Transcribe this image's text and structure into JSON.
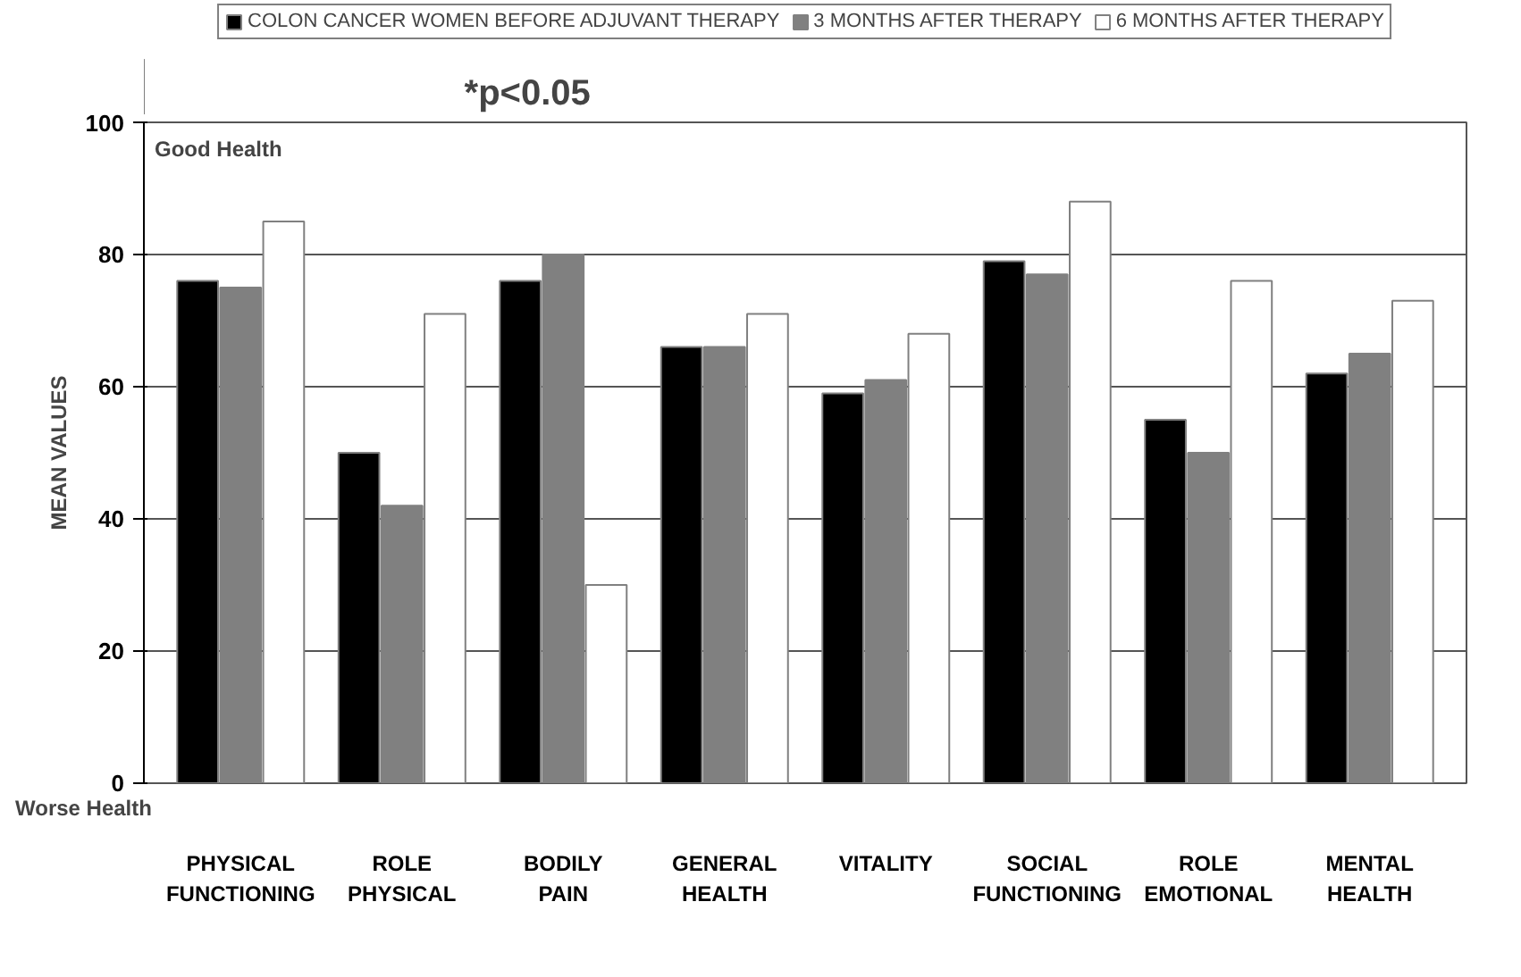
{
  "chart_data": {
    "type": "bar",
    "categories": [
      "PHYSICAL\nFUNCTIONING",
      "ROLE\nPHYSICAL",
      "BODILY\nPAIN",
      "GENERAL\nHEALTH",
      "VITALITY",
      "SOCIAL\nFUNCTIONING",
      "ROLE\nEMOTIONAL",
      "MENTAL\nHEALTH"
    ],
    "series": [
      {
        "name": "COLON CANCER WOMEN BEFORE ADJUVANT THERAPY",
        "color": "#000000",
        "values": [
          76,
          50,
          76,
          66,
          59,
          79,
          55,
          62
        ]
      },
      {
        "name": "3 MONTHS AFTER THERAPY",
        "color": "#808080",
        "values": [
          75,
          42,
          80,
          66,
          61,
          77,
          50,
          65
        ]
      },
      {
        "name": "6 MONTHS AFTER THERAPY",
        "color": "#ffffff",
        "values": [
          85,
          71,
          30,
          71,
          68,
          88,
          76,
          73
        ]
      }
    ],
    "ylabel": "MEAN VALUES",
    "ylim": [
      0,
      100
    ],
    "yticks": [
      0,
      20,
      40,
      60,
      80,
      100
    ],
    "grid": "y",
    "legend": "top",
    "annotations": [
      "Good Health",
      "Worse Health",
      "*p<0.05"
    ]
  }
}
